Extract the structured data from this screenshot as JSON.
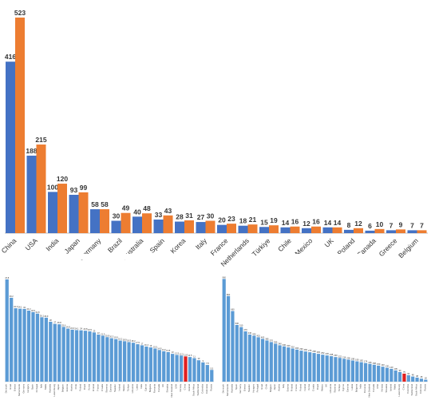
{
  "colors": {
    "series_a": "#4472C4",
    "series_b": "#ED7D31",
    "small_bar": "#5B9BD5",
    "highlight": "#E02020",
    "axis": "#BFBFBF"
  },
  "chart_data": [
    {
      "type": "bar",
      "categories": [
        "China",
        "USA",
        "India",
        "Japan",
        "Germany",
        "Brazil",
        "Australia",
        "Spain",
        "Korea",
        "Italy",
        "France",
        "Netherlands",
        "Türkiye",
        "Chile",
        "Mexico",
        "UK",
        "Poland",
        "Canada",
        "Greece",
        "Belgium"
      ],
      "series": [
        {
          "values": [
            416,
            188,
            100,
            93,
            58,
            30,
            40,
            33,
            28,
            27,
            20,
            18,
            15,
            14,
            12,
            14,
            8,
            6,
            7,
            7
          ]
        },
        {
          "values": [
            523,
            215,
            120,
            99,
            58,
            49,
            48,
            43,
            31,
            30,
            23,
            21,
            19,
            16,
            16,
            14,
            12,
            10,
            9,
            7
          ]
        }
      ],
      "ylim": [
        0,
        523
      ],
      "grid": false,
      "legend": "none"
    },
    {
      "type": "bar",
      "categories": [
        "Denmark",
        "Israel",
        "Greece",
        "Netherlands",
        "Germany",
        "Hungary",
        "Spain",
        "Portugal",
        "Italy",
        "Malta",
        "Australia",
        "Luxembourg",
        "Japan",
        "Belgium",
        "Estonia",
        "Austria",
        "Chile",
        "Poland",
        "Brazil",
        "Korea",
        "Finland",
        "France",
        "Croatia",
        "Slovenia",
        "Czechia",
        "Sweden",
        "Ireland",
        "Mexico",
        "Türkiye",
        "Lithuania",
        "Latvia",
        "India",
        "Cyprus",
        "Bulgaria",
        "Romania",
        "Canada",
        "UK",
        "Slovakia",
        "New Zealand",
        "USA",
        "Norway",
        "China",
        "Iceland",
        "South Africa",
        "Switzerland",
        "Colombia",
        "Indonesia",
        "Russia"
      ],
      "values": [
        47.8,
        39.2,
        34.3,
        34.1,
        34.0,
        33.2,
        32.5,
        31.8,
        30.1,
        29.9,
        28.0,
        27.0,
        26.8,
        25.6,
        24.8,
        24.3,
        24.1,
        24.0,
        23.8,
        23.5,
        23.0,
        22.0,
        21.5,
        20.8,
        20.3,
        19.9,
        19.2,
        18.9,
        18.5,
        18.2,
        17.5,
        17.0,
        16.4,
        16.0,
        15.5,
        14.8,
        14.2,
        13.8,
        13.0,
        12.5,
        12.2,
        11.8,
        11.5,
        11.0,
        10.0,
        9.0,
        7.8,
        5.5
      ],
      "highlight_index": 41,
      "ylim": [
        0,
        50
      ]
    },
    {
      "type": "bar",
      "categories": [
        "Denmark",
        "Netherlands",
        "Australia",
        "Spain",
        "Germany",
        "Greece",
        "Sweden",
        "Hungary",
        "Portugal",
        "Israel",
        "Chile",
        "Belgium",
        "Japan",
        "Austria",
        "Italy",
        "Estonia",
        "Finland",
        "France",
        "Poland",
        "Ireland",
        "Korea",
        "Croatia",
        "Brazil",
        "Mexico",
        "UK",
        "Lithuania",
        "Slovenia",
        "Türkiye",
        "Cyprus",
        "Czechia",
        "Latvia",
        "Bulgaria",
        "India",
        "Romania",
        "New Zealand",
        "Canada",
        "USA",
        "Norway",
        "Slovakia",
        "Iceland",
        "Malta",
        "Luxembourg",
        "China",
        "Colombia",
        "Switzerland",
        "South Africa",
        "Indonesia",
        "Russia"
      ],
      "values": [
        960,
        800,
        660,
        530,
        510,
        470,
        440,
        430,
        415,
        400,
        385,
        370,
        355,
        340,
        330,
        320,
        310,
        300,
        290,
        282,
        275,
        268,
        260,
        252,
        245,
        238,
        230,
        222,
        214,
        206,
        198,
        190,
        182,
        174,
        166,
        158,
        150,
        140,
        130,
        120,
        105,
        90,
        75,
        60,
        48,
        38,
        28,
        18
      ],
      "highlight_index": 42,
      "ylim": [
        0,
        1000
      ]
    }
  ]
}
